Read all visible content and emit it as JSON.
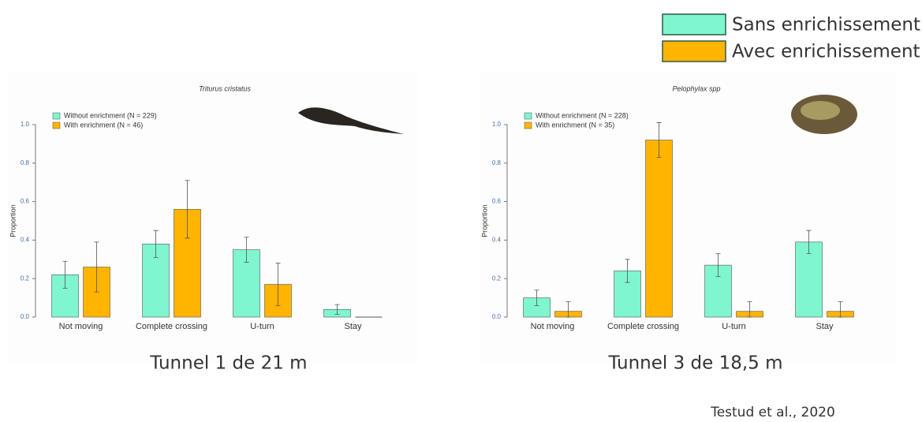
{
  "slide_legend": [
    {
      "label": "Sans enrichissement",
      "color": "#7ff5d0"
    },
    {
      "label": "Avec enrichissement",
      "color": "#ffb400"
    }
  ],
  "captions": [
    "Tunnel 1 de 21 m",
    "Tunnel 3 de 18,5 m"
  ],
  "citation": "Testud et al., 2020",
  "chart_data": [
    {
      "type": "bar",
      "title": "Triturus cristatus",
      "y_label": "Proportion",
      "categories": [
        "Not moving",
        "Complete crossing",
        "U-turn",
        "Stay"
      ],
      "series": [
        {
          "name": "Without enrichment (N = 229)",
          "color": "#7ff5d0",
          "values": [
            0.22,
            0.38,
            0.35,
            0.04
          ],
          "errors": [
            0.07,
            0.07,
            0.065,
            0.025
          ]
        },
        {
          "name": "With enrichment (N = 46)",
          "color": "#ffb400",
          "values": [
            0.26,
            0.56,
            0.17,
            0.0
          ],
          "errors": [
            0.13,
            0.15,
            0.11,
            null
          ]
        }
      ],
      "ylim": [
        0,
        1
      ],
      "yticks": [
        {
          "value": 0,
          "label": "0.0"
        },
        0.2,
        0.4,
        0.6,
        0.8,
        {
          "value": 1,
          "label": "1.0"
        }
      ]
    },
    {
      "type": "bar",
      "title": "Pelophylax spp",
      "y_label": "Proportion",
      "categories": [
        "Not moving",
        "Complete crossing",
        "U-turn",
        "Stay"
      ],
      "series": [
        {
          "name": "Without enrichment (N = 228)",
          "color": "#7ff5d0",
          "values": [
            0.1,
            0.24,
            0.27,
            0.39
          ],
          "errors": [
            0.04,
            0.06,
            0.06,
            0.06
          ]
        },
        {
          "name": "With enrichment (N = 35)",
          "color": "#ffb400",
          "values": [
            0.03,
            0.92,
            0.03,
            0.03
          ],
          "errors": [
            0.05,
            0.09,
            0.05,
            0.05
          ]
        }
      ],
      "ylim": [
        0,
        1
      ],
      "yticks": [
        {
          "value": 0,
          "label": "0.0"
        },
        0.2,
        0.4,
        0.6,
        0.8,
        {
          "value": 1,
          "label": "1.0"
        }
      ]
    }
  ]
}
